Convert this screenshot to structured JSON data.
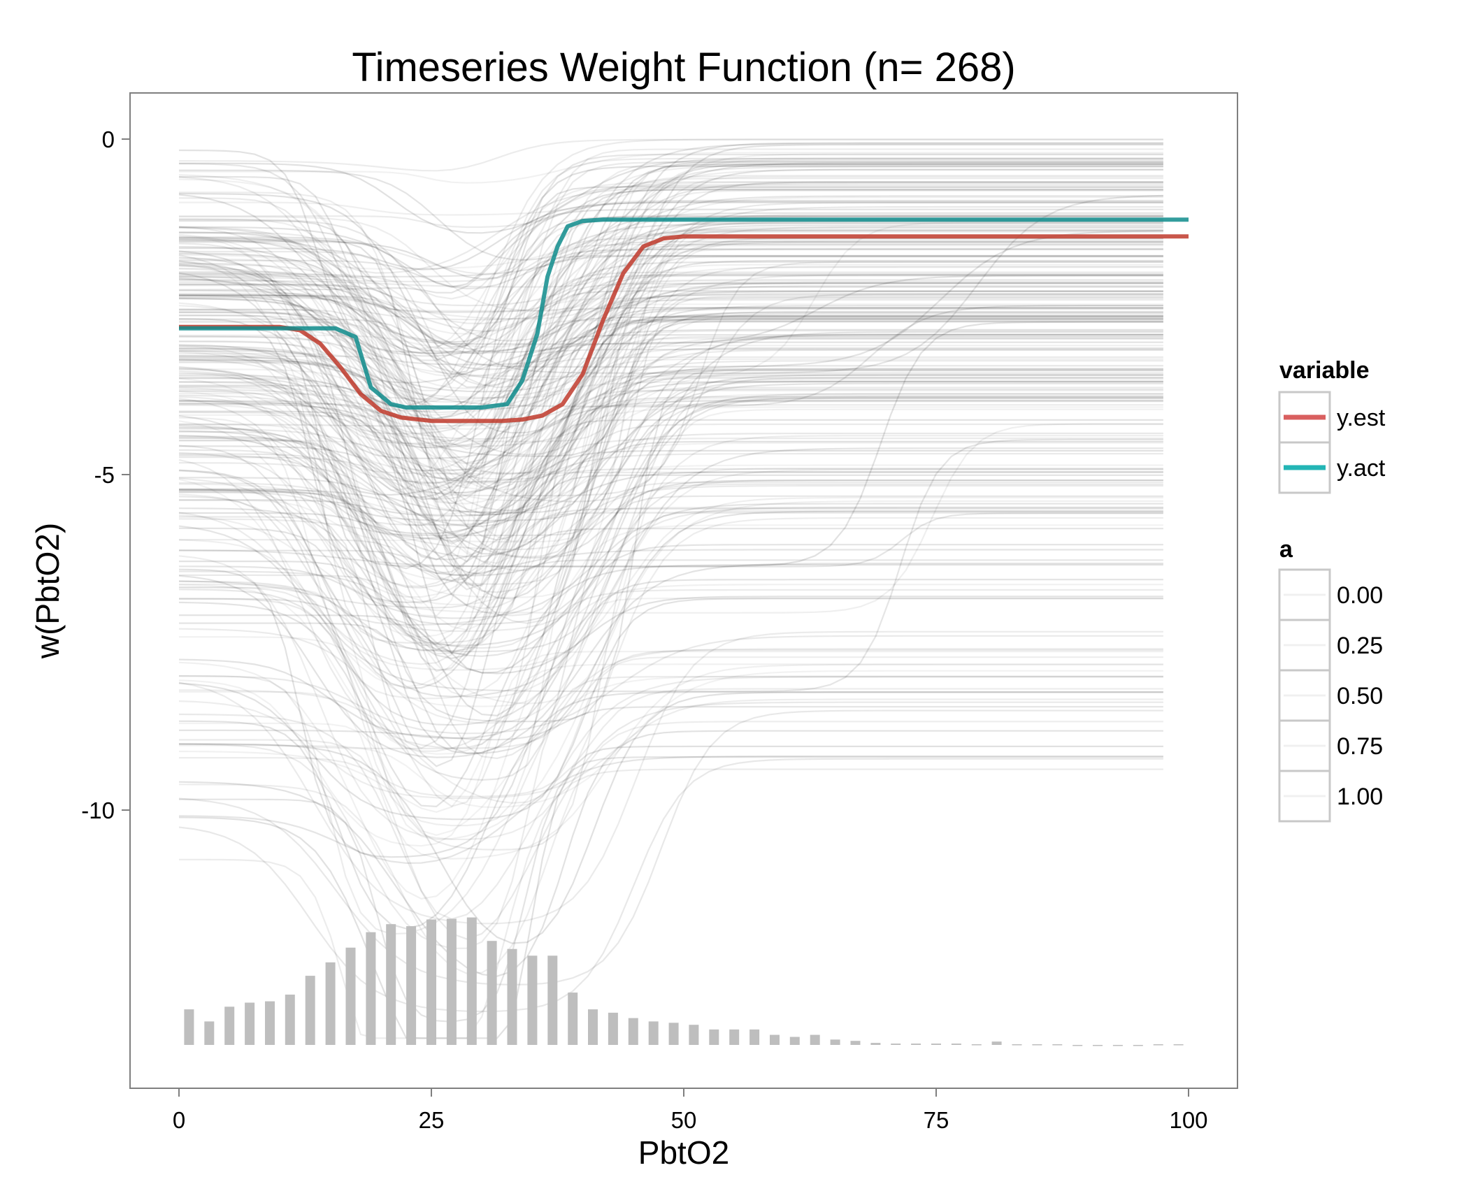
{
  "chart_data": {
    "type": "line",
    "title": "Timeseries Weight Function (n= 268)",
    "xlabel": "PbtO2",
    "ylabel": "w(PbtO2)",
    "xlim": [
      0,
      100
    ],
    "ylim": [
      -13.9,
      0.65
    ],
    "x_ticks": [
      0,
      25,
      50,
      75,
      100
    ],
    "x_tick_labels": [
      "0",
      "25",
      "50",
      "75",
      "100"
    ],
    "y_ticks": [
      0,
      -5,
      -10
    ],
    "y_tick_labels": [
      "0",
      "-5",
      "-10"
    ],
    "grid": false,
    "legend_position": "right",
    "legends": [
      {
        "title": "variable",
        "entries": [
          {
            "label": "y.est",
            "color": "#d95f5f"
          },
          {
            "label": "y.act",
            "color": "#23b5b5"
          }
        ]
      },
      {
        "title": "a",
        "entries": [
          {
            "label": "0.00"
          },
          {
            "label": "0.25"
          },
          {
            "label": "0.50"
          },
          {
            "label": "0.75"
          },
          {
            "label": "1.00"
          }
        ]
      }
    ],
    "series": [
      {
        "name": "y.est",
        "color": "#c0392b",
        "x": [
          0,
          5,
          10,
          12,
          14,
          16,
          18,
          20,
          22,
          25,
          28,
          30,
          32,
          34,
          36,
          38,
          40,
          42,
          44,
          46,
          48,
          50,
          55,
          100
        ],
        "y": [
          -2.8,
          -2.8,
          -2.8,
          -2.85,
          -3.05,
          -3.4,
          -3.8,
          -4.05,
          -4.15,
          -4.2,
          -4.2,
          -4.2,
          -4.2,
          -4.18,
          -4.12,
          -3.95,
          -3.5,
          -2.7,
          -2.0,
          -1.6,
          -1.48,
          -1.45,
          -1.45,
          -1.45
        ]
      },
      {
        "name": "y.act",
        "color": "#0f8c8c",
        "x": [
          0,
          5,
          10,
          13,
          15.5,
          17.5,
          19,
          21,
          22.5,
          25,
          28,
          30,
          32.5,
          34,
          35.5,
          36.5,
          37.5,
          38.5,
          40,
          42,
          50,
          100
        ],
        "y": [
          -2.82,
          -2.82,
          -2.82,
          -2.82,
          -2.82,
          -2.95,
          -3.7,
          -3.95,
          -4.0,
          -4.0,
          -4.0,
          -4.0,
          -3.95,
          -3.6,
          -2.9,
          -2.05,
          -1.6,
          -1.3,
          -1.22,
          -1.2,
          -1.2,
          -1.2
        ]
      }
    ],
    "histogram": {
      "baseline": -13.5,
      "x": [
        1,
        3,
        5,
        7,
        9,
        11,
        13,
        15,
        17,
        19,
        21,
        23,
        25,
        27,
        29,
        31,
        33,
        35,
        37,
        39,
        41,
        43,
        45,
        47,
        49,
        51,
        53,
        55,
        57,
        59,
        61,
        63,
        65,
        67,
        69,
        71,
        73,
        75,
        77,
        79,
        81,
        83,
        85,
        87,
        89,
        91,
        93,
        95,
        97,
        99
      ],
      "y": [
        -12.97,
        -13.15,
        -12.93,
        -12.87,
        -12.85,
        -12.75,
        -12.47,
        -12.27,
        -12.05,
        -11.82,
        -11.7,
        -11.73,
        -11.63,
        -11.62,
        -11.6,
        -11.95,
        -12.07,
        -12.17,
        -12.17,
        -12.72,
        -12.97,
        -13.02,
        -13.1,
        -13.15,
        -13.17,
        -13.2,
        -13.27,
        -13.27,
        -13.27,
        -13.35,
        -13.38,
        -13.35,
        -13.42,
        -13.44,
        -13.47,
        -13.48,
        -13.48,
        -13.48,
        -13.48,
        -13.49,
        -13.45,
        -13.49,
        -13.49,
        -13.49,
        -13.5,
        -13.5,
        -13.5,
        -13.5,
        -13.49,
        -13.49
      ]
    }
  }
}
